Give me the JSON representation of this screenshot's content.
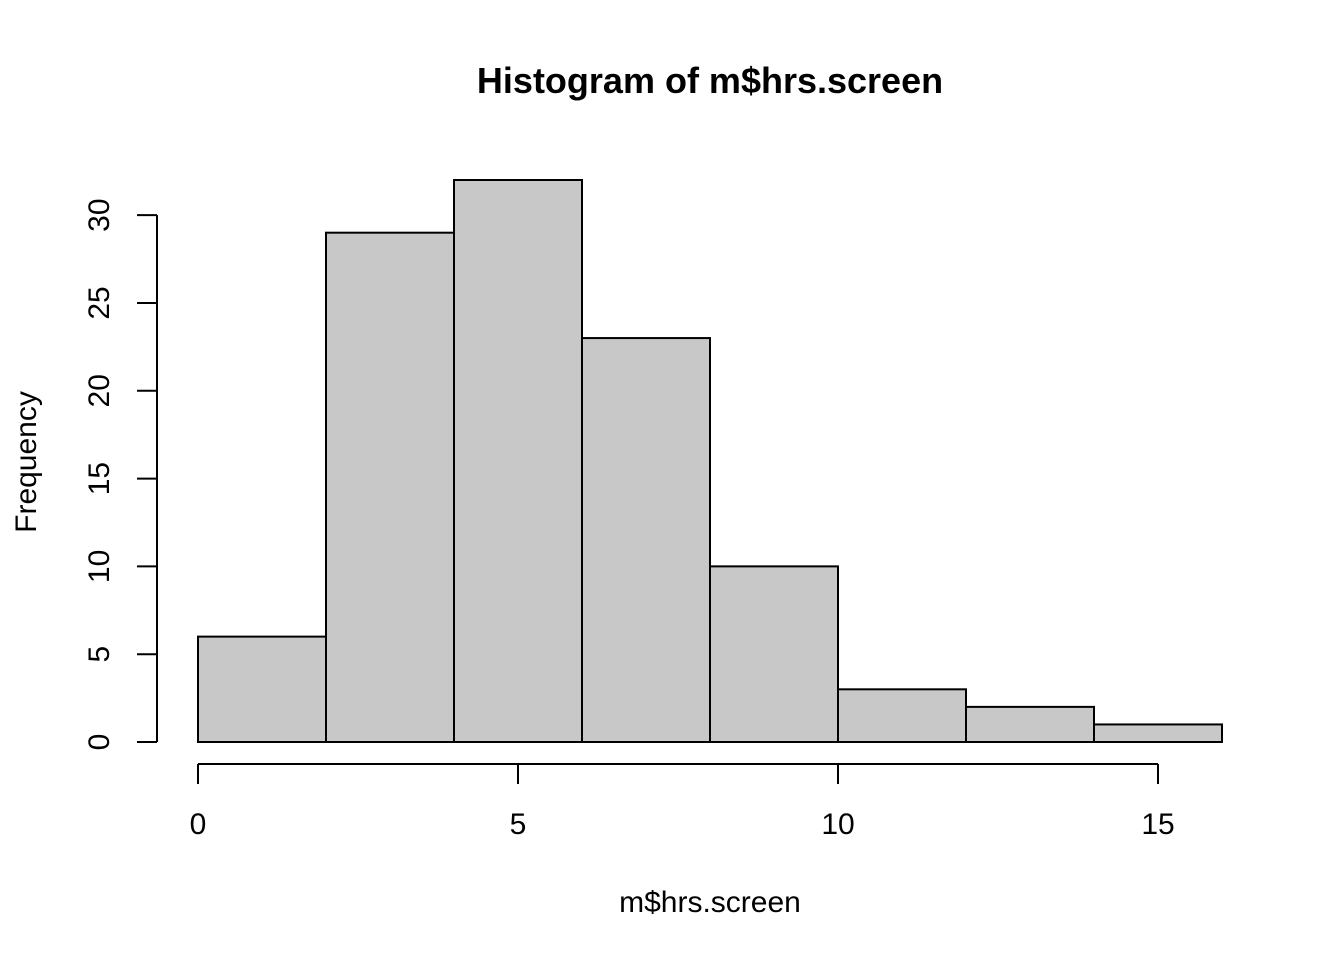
{
  "chart_data": {
    "type": "bar",
    "subtype": "histogram",
    "title": "Histogram of m$hrs.screen",
    "xlabel": "m$hrs.screen",
    "ylabel": "Frequency",
    "bins": [
      {
        "start": 0,
        "end": 2,
        "value": 6
      },
      {
        "start": 2,
        "end": 4,
        "value": 29
      },
      {
        "start": 4,
        "end": 6,
        "value": 32
      },
      {
        "start": 6,
        "end": 8,
        "value": 23
      },
      {
        "start": 8,
        "end": 10,
        "value": 10
      },
      {
        "start": 10,
        "end": 12,
        "value": 3
      },
      {
        "start": 12,
        "end": 14,
        "value": 2
      },
      {
        "start": 14,
        "end": 16,
        "value": 1
      }
    ],
    "xticks": [
      0,
      5,
      10,
      15
    ],
    "yticks": [
      0,
      5,
      10,
      15,
      20,
      25,
      30
    ],
    "xlim": [
      0,
      16
    ],
    "ylim": [
      0,
      32
    ],
    "grid": false,
    "legend": "none",
    "colors": {
      "bar_fill": "#c8c8c8",
      "bar_edge": "#000000",
      "background": "#ffffff"
    }
  }
}
